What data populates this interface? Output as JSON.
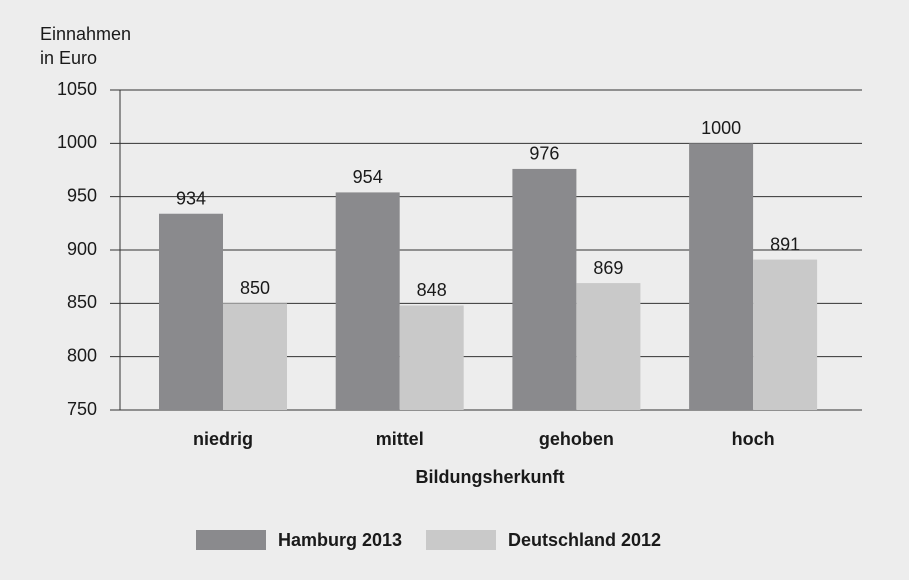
{
  "chart_data": {
    "type": "bar",
    "y_label": [
      "Einnahmen",
      "in Euro"
    ],
    "x_label": "Bildungsherkunft",
    "categories": [
      "niedrig",
      "mittel",
      "gehoben",
      "hoch"
    ],
    "series": [
      {
        "name": "Hamburg 2013",
        "color": "#8a8a8d",
        "values": [
          934,
          954,
          976,
          1000
        ]
      },
      {
        "name": "Deutschland 2012",
        "color": "#c9c9c9",
        "values": [
          850,
          848,
          869,
          891
        ]
      }
    ],
    "ylim": [
      750,
      1050
    ],
    "yticks": [
      750,
      800,
      850,
      900,
      950,
      1000,
      1050
    ],
    "grid": true,
    "legend": "bottom"
  }
}
